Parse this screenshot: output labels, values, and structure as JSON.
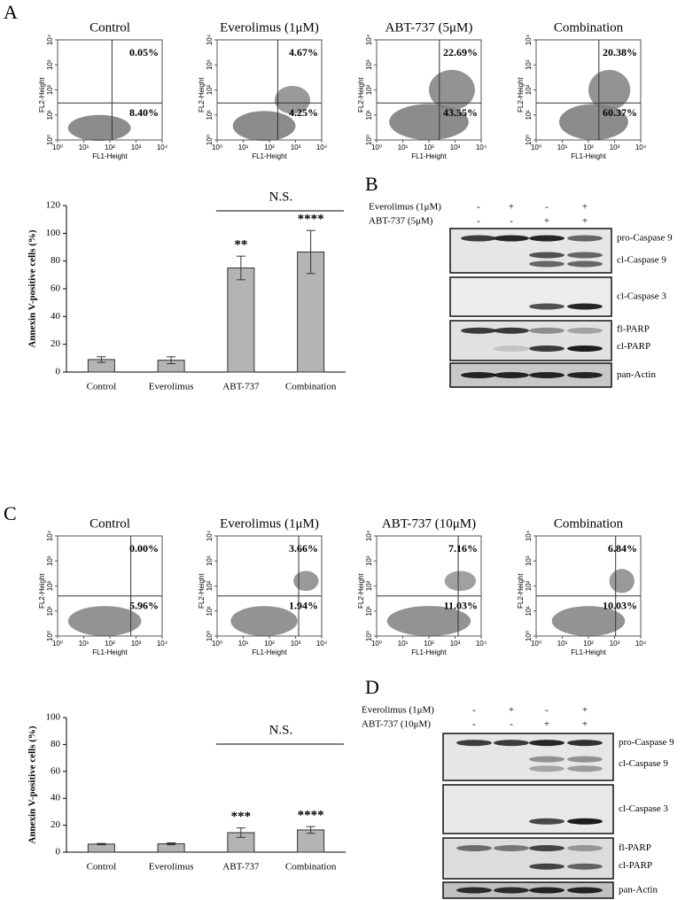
{
  "panels": {
    "a": "A",
    "b": "B",
    "c": "C",
    "d": "D"
  },
  "flow_axis": {
    "xlabel": "FL1-Height",
    "ylabel": "FL2-Height",
    "lim": [
      1,
      10000
    ],
    "ticks": [
      {
        "value": 1,
        "label": "10⁰"
      },
      {
        "value": 10,
        "label": "10¹"
      },
      {
        "value": 100,
        "label": "10²"
      },
      {
        "value": 1000,
        "label": "10³"
      },
      {
        "value": 10000,
        "label": "10⁴"
      }
    ]
  },
  "flow_a": {
    "plots": [
      {
        "title": "Control",
        "upper_right": "0.05%",
        "lower_right": "8.40%"
      },
      {
        "title": "Everolimus (1μM)",
        "upper_right": "4.67%",
        "lower_right": "4.25%"
      },
      {
        "title": "ABT-737 (5μM)",
        "upper_right": "22.69%",
        "lower_right": "43.55%"
      },
      {
        "title": "Combination",
        "upper_right": "20.38%",
        "lower_right": "60.37%"
      }
    ]
  },
  "flow_c": {
    "plots": [
      {
        "title": "Control",
        "upper_right": "0.00%",
        "lower_right": "5.96%"
      },
      {
        "title": "Everolimus (1μM)",
        "upper_right": "3.66%",
        "lower_right": "1.94%"
      },
      {
        "title": "ABT-737 (10μM)",
        "upper_right": "7.16%",
        "lower_right": "11.03%"
      },
      {
        "title": "Combination",
        "upper_right": "6.84%",
        "lower_right": "10.03%"
      }
    ]
  },
  "chart_data": [
    {
      "type": "bar",
      "ylabel": "Annexin V-positive cells (%)",
      "categories": [
        "Control",
        "Everolimus",
        "ABT-737",
        "Combination"
      ],
      "values": [
        9,
        8.5,
        75,
        86.5
      ],
      "errors": [
        2,
        2.5,
        8.5,
        15.5
      ],
      "significance": [
        null,
        null,
        "**",
        "****"
      ],
      "bracket_label": "N.S.",
      "color": "#b4b4b4",
      "ylim": [
        0,
        120
      ],
      "yticks": [
        0,
        20,
        40,
        60,
        80,
        100,
        120
      ]
    },
    {
      "type": "bar",
      "ylabel": "Annexin V-positive cells (%)",
      "categories": [
        "Control",
        "Everolimus",
        "ABT-737",
        "Combination"
      ],
      "values": [
        6,
        6.2,
        14.5,
        16.5
      ],
      "errors": [
        0.5,
        0.7,
        3.5,
        2.5
      ],
      "significance": [
        null,
        null,
        "***",
        "****"
      ],
      "bracket_label": "N.S.",
      "color": "#b4b4b4",
      "ylim": [
        0,
        100
      ],
      "yticks": [
        0,
        20,
        40,
        60,
        80,
        100
      ]
    }
  ],
  "blot_b": {
    "treatments": [
      {
        "name": "Everolimus (1μM)",
        "signs": [
          "-",
          "+",
          "-",
          "+"
        ]
      },
      {
        "name": "ABT-737 (5μM)",
        "signs": [
          "-",
          "-",
          "+",
          "+"
        ]
      }
    ],
    "bands": [
      "pro-Caspase 9",
      "cl-Caspase 9",
      "cl-Caspase 3",
      "fl-PARP",
      "cl-PARP",
      "pan-Actin"
    ]
  },
  "blot_d": {
    "treatments": [
      {
        "name": "Everolimus (1μM)",
        "signs": [
          "-",
          "+",
          "-",
          "+"
        ]
      },
      {
        "name": "ABT-737 (10μM)",
        "signs": [
          "-",
          "-",
          "+",
          "+"
        ]
      }
    ],
    "bands": [
      "pro-Caspase 9",
      "cl-Caspase 9",
      "cl-Caspase 3",
      "fl-PARP",
      "cl-PARP",
      "pan-Actin"
    ]
  }
}
